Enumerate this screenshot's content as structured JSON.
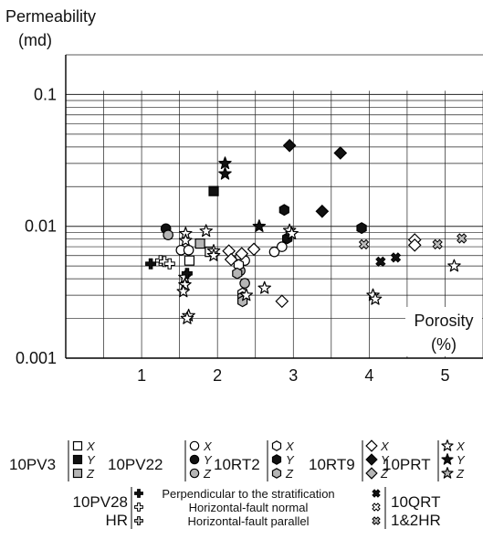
{
  "chart_data": {
    "type": "scatter",
    "title": "",
    "ylabel": [
      "Permeability",
      "(md)"
    ],
    "xlabel": [
      "Porosity",
      "(%)"
    ],
    "x_scale": "linear",
    "y_scale": "log",
    "xlim": [
      0,
      5.5
    ],
    "ylim": [
      0.001,
      0.2
    ],
    "x_ticks": [
      {
        "value": 1,
        "label": "1"
      },
      {
        "value": 2,
        "label": "2"
      },
      {
        "value": 3,
        "label": "3"
      },
      {
        "value": 4,
        "label": "4"
      },
      {
        "value": 5,
        "label": "5"
      }
    ],
    "y_ticks": [
      {
        "value": 0.001,
        "label": "0.001"
      },
      {
        "value": 0.01,
        "label": "0.01"
      },
      {
        "value": 0.1,
        "label": "0.1"
      }
    ],
    "grid": true,
    "series": [
      {
        "name": "10PV3 X",
        "marker": "square",
        "fill": "#ffffff",
        "points": [
          [
            1.63,
            0.0055
          ],
          [
            1.9,
            0.0064
          ]
        ]
      },
      {
        "name": "10PV3 Y",
        "marker": "square",
        "fill": "#111111",
        "points": [
          [
            1.95,
            0.0185
          ]
        ]
      },
      {
        "name": "10PV3 Z",
        "marker": "square",
        "fill": "#b5b5b5",
        "points": [
          [
            1.77,
            0.0074
          ]
        ]
      },
      {
        "name": "10PV22 X",
        "marker": "circle",
        "fill": "#ffffff",
        "points": [
          [
            1.52,
            0.0066
          ],
          [
            1.62,
            0.0066
          ],
          [
            2.3,
            0.0059
          ],
          [
            2.36,
            0.0055
          ],
          [
            2.75,
            0.0064
          ],
          [
            2.85,
            0.007
          ]
        ]
      },
      {
        "name": "10PV22 Y",
        "marker": "circle",
        "fill": "#111111",
        "points": [
          [
            1.32,
            0.0096
          ]
        ]
      },
      {
        "name": "10PV22 Z",
        "marker": "circle",
        "fill": "#b5b5b5",
        "points": [
          [
            1.35,
            0.0086
          ],
          [
            2.3,
            0.0046
          ],
          [
            2.36,
            0.0037
          ]
        ]
      },
      {
        "name": "10RT2 X",
        "marker": "hexagon",
        "fill": "#ffffff",
        "points": [
          [
            2.28,
            0.0051
          ],
          [
            2.33,
            0.0031
          ]
        ]
      },
      {
        "name": "10RT2 Y",
        "marker": "hexagon",
        "fill": "#111111",
        "points": [
          [
            2.88,
            0.0133
          ],
          [
            2.92,
            0.0081
          ],
          [
            3.9,
            0.0097
          ]
        ]
      },
      {
        "name": "10RT2 Z",
        "marker": "hexagon",
        "fill": "#b5b5b5",
        "points": [
          [
            2.26,
            0.0044
          ],
          [
            2.33,
            0.0029
          ],
          [
            2.33,
            0.0027
          ]
        ]
      },
      {
        "name": "10RT9 X",
        "marker": "diamond",
        "fill": "#ffffff",
        "points": [
          [
            2.15,
            0.0065
          ],
          [
            2.18,
            0.0056
          ],
          [
            2.32,
            0.0062
          ],
          [
            2.48,
            0.0067
          ],
          [
            2.85,
            0.0027
          ],
          [
            4.6,
            0.0079
          ],
          [
            4.6,
            0.0072
          ]
        ]
      },
      {
        "name": "10RT9 Y",
        "marker": "diamond",
        "fill": "#111111",
        "points": [
          [
            2.95,
            0.041
          ],
          [
            3.38,
            0.013
          ],
          [
            3.62,
            0.036
          ]
        ]
      },
      {
        "name": "10RT9 Z",
        "marker": "diamond",
        "fill": "#b5b5b5",
        "points": []
      },
      {
        "name": "10PRT X",
        "marker": "star",
        "fill": "#ffffff",
        "points": [
          [
            1.58,
            0.0088
          ],
          [
            1.58,
            0.0078
          ],
          [
            1.57,
            0.0041
          ],
          [
            1.57,
            0.0036
          ],
          [
            1.55,
            0.0032
          ],
          [
            1.62,
            0.0021
          ],
          [
            1.6,
            0.002
          ],
          [
            1.85,
            0.0092
          ],
          [
            1.95,
            0.0065
          ],
          [
            1.95,
            0.006
          ],
          [
            2.38,
            0.003
          ],
          [
            2.62,
            0.0034
          ],
          [
            2.95,
            0.0093
          ],
          [
            2.98,
            0.0088
          ],
          [
            4.05,
            0.003
          ],
          [
            4.08,
            0.0028
          ],
          [
            5.12,
            0.005
          ]
        ]
      },
      {
        "name": "10PRT Y",
        "marker": "star",
        "fill": "#111111",
        "points": [
          [
            2.1,
            0.03
          ],
          [
            2.1,
            0.025
          ],
          [
            2.55,
            0.01
          ]
        ]
      },
      {
        "name": "10PRT Z",
        "marker": "star",
        "fill": "#ffffff",
        "points": []
      },
      {
        "name": "10PV28 HR Perpendicular to the stratification",
        "marker": "cross",
        "fill": "#111111",
        "points": [
          [
            1.12,
            0.0052
          ],
          [
            1.6,
            0.0044
          ]
        ]
      },
      {
        "name": "10PV28 HR Horizontal-fault normal",
        "marker": "cross",
        "fill": "#ffffff",
        "points": [
          [
            1.25,
            0.0055
          ],
          [
            1.3,
            0.0054
          ],
          [
            1.37,
            0.0052
          ]
        ]
      },
      {
        "name": "10PV28 HR Horizontal-fault parallel",
        "marker": "cross",
        "fill": "#c8c8c8",
        "points": []
      },
      {
        "name": "10QRT 1&2HR Perpendicular to the stratification",
        "marker": "x",
        "fill": "#111111",
        "points": [
          [
            4.15,
            0.0054
          ],
          [
            4.35,
            0.0058
          ]
        ]
      },
      {
        "name": "10QRT 1&2HR Horizontal-fault normal",
        "marker": "x",
        "fill": "#ffffff",
        "points": []
      },
      {
        "name": "10QRT 1&2HR Horizontal-fault parallel",
        "marker": "x",
        "fill": "#bbbbbb",
        "points": [
          [
            3.93,
            0.0073
          ],
          [
            4.9,
            0.0073
          ],
          [
            5.22,
            0.0081
          ]
        ]
      }
    ]
  },
  "legend": {
    "groups": [
      {
        "name": "10PV3",
        "marker": "square"
      },
      {
        "name": "10PV22",
        "marker": "circle"
      },
      {
        "name": "10RT2",
        "marker": "hexagon"
      },
      {
        "name": "10RT9",
        "marker": "diamond"
      },
      {
        "name": "10PRT",
        "marker": "star"
      }
    ],
    "axes": [
      "X",
      "Y",
      "Z"
    ],
    "fills": [
      "#ffffff",
      "#111111",
      "#b5b5b5"
    ],
    "lower_left": [
      "10PV28",
      "HR"
    ],
    "lower_right": [
      "10QRT",
      "1&2HR"
    ],
    "orientations": [
      "Perpendicular to the stratification",
      "Horizontal-fault normal",
      "Horizontal-fault parallel"
    ]
  }
}
